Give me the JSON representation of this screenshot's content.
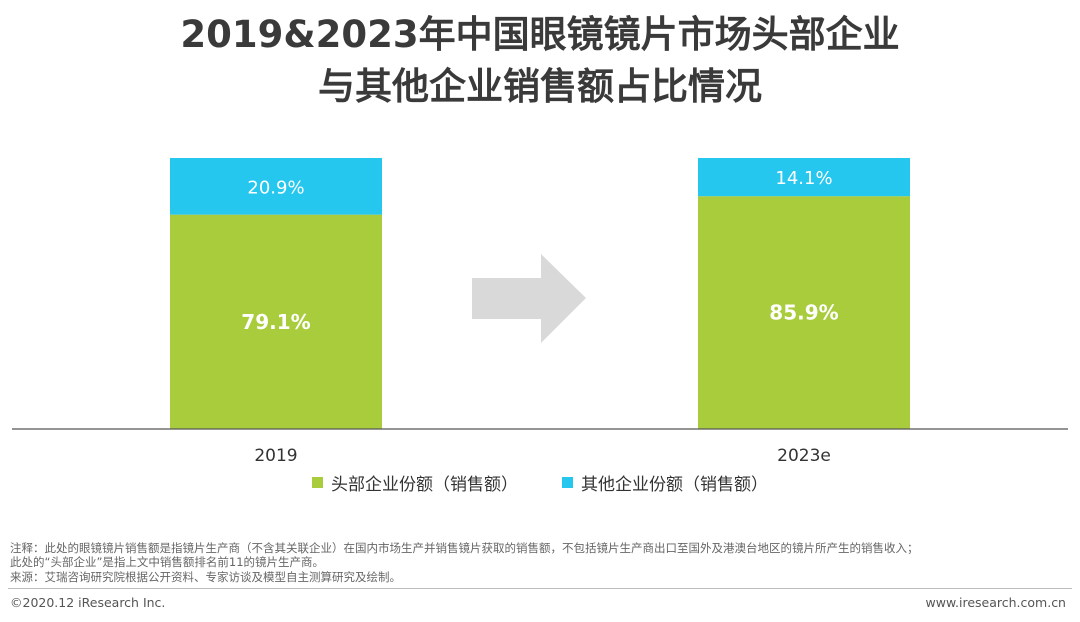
{
  "title": {
    "line1": "2019&2023年中国眼镜镜片市场头部企业",
    "line2": "与其他企业销售额占比情况"
  },
  "chart_data": {
    "type": "bar",
    "stacked": true,
    "percent": true,
    "categories": [
      "2019",
      "2023e"
    ],
    "series": [
      {
        "name": "头部企业份额（销售额）",
        "values": [
          79.1,
          85.9
        ],
        "labels": [
          "79.1%",
          "85.9%"
        ],
        "color": "#a8cc3b"
      },
      {
        "name": "其他企业份额（销售额）",
        "values": [
          20.9,
          14.1
        ],
        "labels": [
          "20.9%",
          "14.1%"
        ],
        "color": "#26c7ef"
      }
    ],
    "ylim": [
      0,
      100
    ],
    "arrow_color": "#d9d9d9",
    "legend_position": "bottom"
  },
  "notes": {
    "line1": "注释：此处的眼镜镜片销售额是指镜片生产商（不含其关联企业）在国内市场生产并销售镜片获取的销售额，不包括镜片生产商出口至国外及港澳台地区的镜片所产生的销售收入；",
    "line2": "此处的“头部企业”是指上文中销售额排名前11的镜片生产商。",
    "line3": "来源：艾瑞咨询研究院根据公开资料、专家访谈及模型自主测算研究及绘制。"
  },
  "footer": {
    "copyright": "©2020.12 iResearch Inc.",
    "website": "www.iresearch.com.cn"
  }
}
